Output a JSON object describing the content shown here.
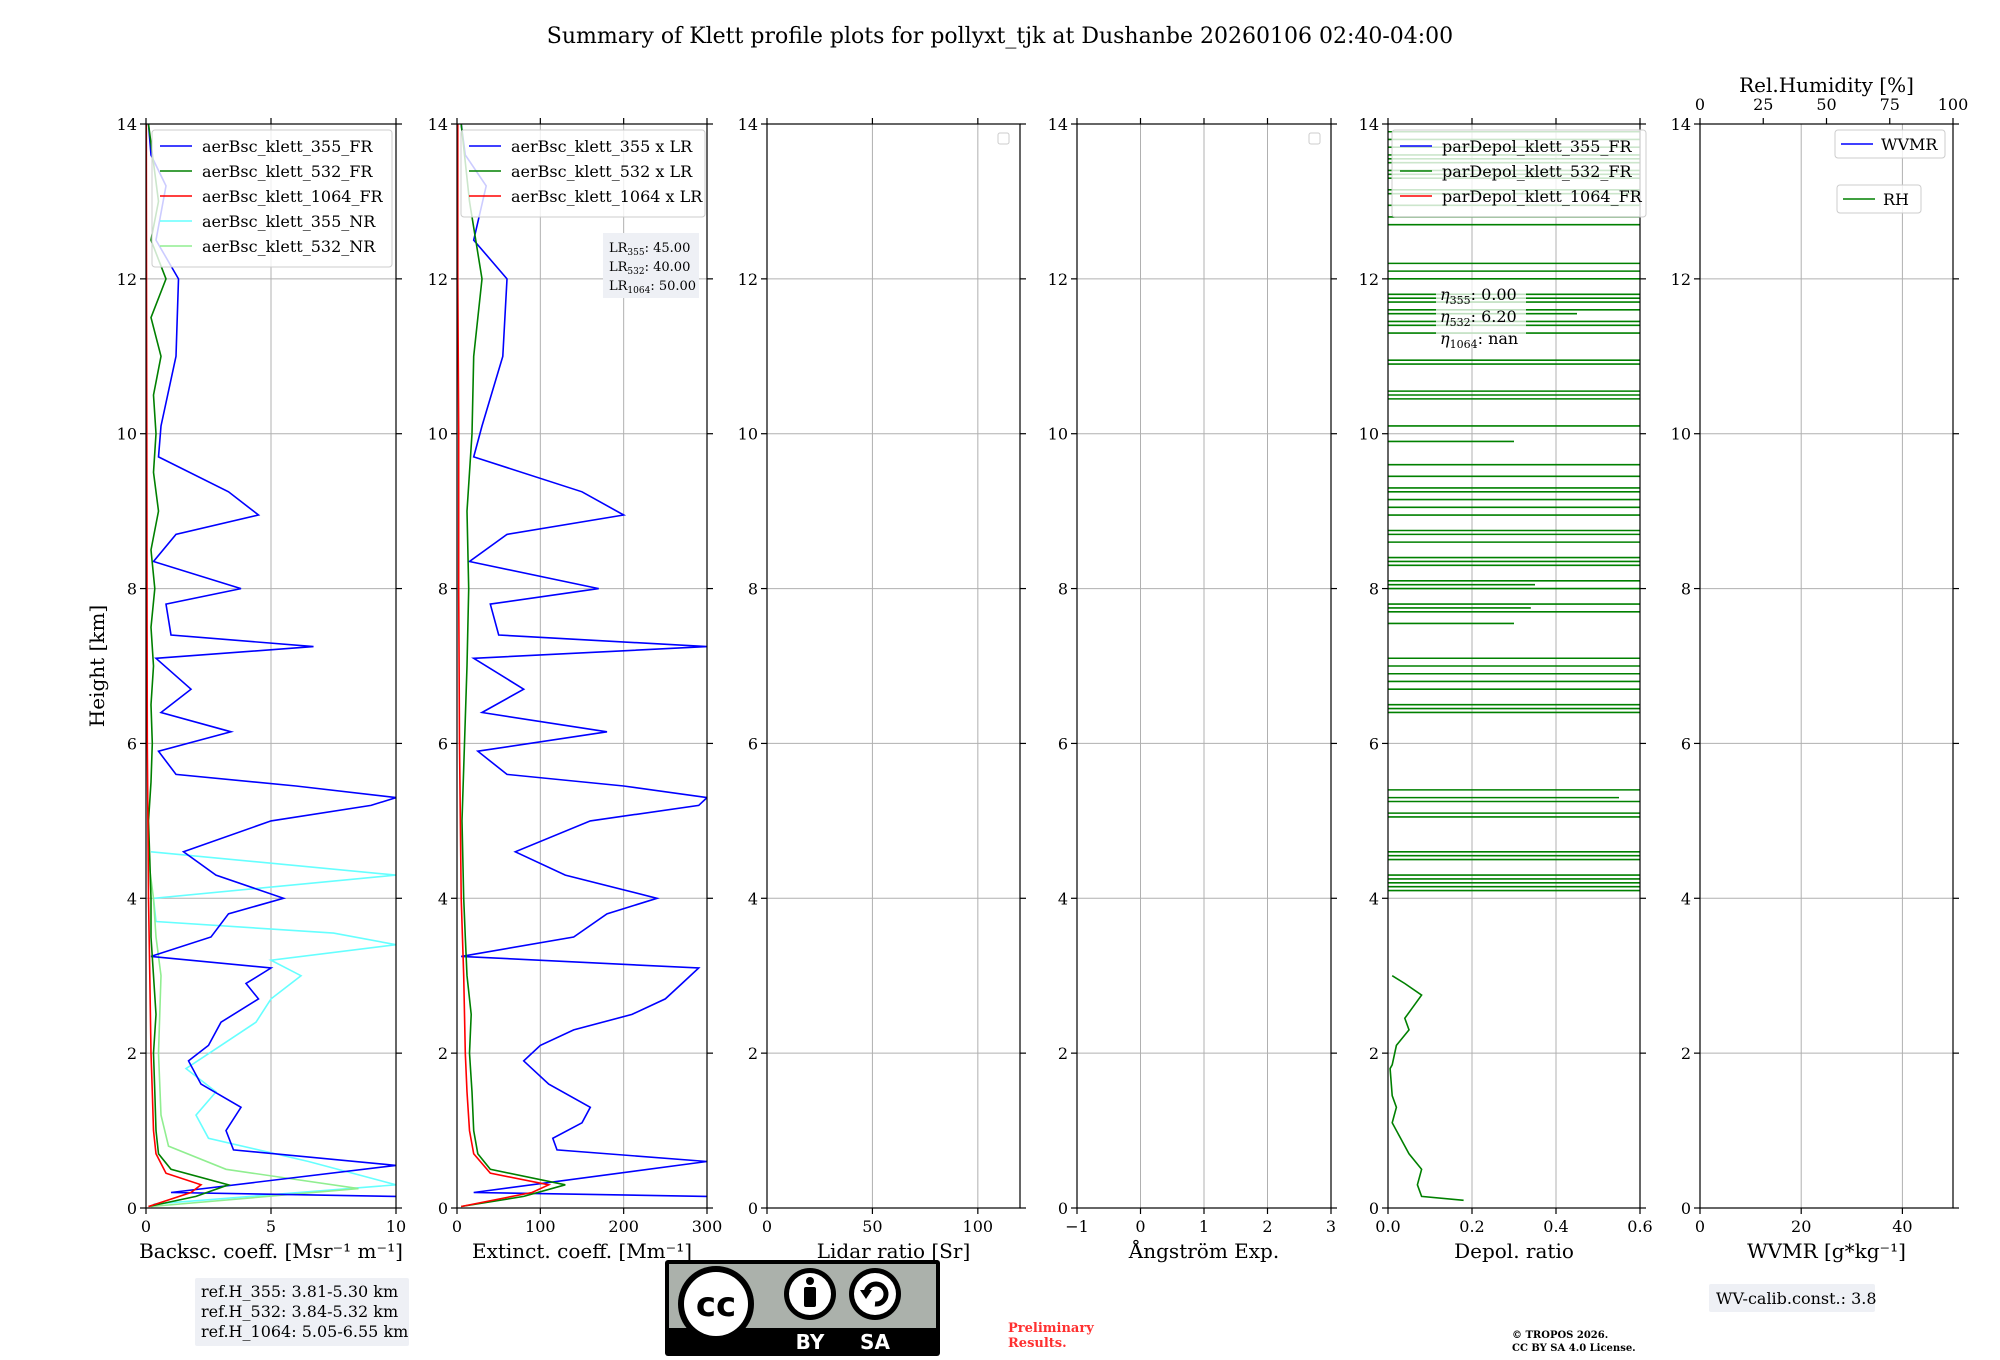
{
  "title": "Summary of Klett profile plots for pollyxt_tjk at Dushanbe 20260106 02:40-04:00",
  "colors": {
    "c355": "#0000ff",
    "c532": "#008000",
    "c1064": "#ff0000",
    "c355nr": "#66ffff",
    "c532nr": "#90ee90"
  },
  "chart_data": [
    {
      "type": "line",
      "id": "bsc",
      "xlabel": "Backsc. coeff. [Msr⁻¹ m⁻¹]",
      "ylabel": "Height [km]",
      "xlim": [
        0,
        10
      ],
      "xticks": [
        "0",
        "5",
        "10"
      ],
      "ylim": [
        0,
        14
      ],
      "yticks": [
        "0",
        "2",
        "4",
        "6",
        "8",
        "10",
        "12",
        "14"
      ],
      "legend": [
        "aerBsc_klett_355_FR",
        "aerBsc_klett_532_FR",
        "aerBsc_klett_1064_FR",
        "aerBsc_klett_355_NR",
        "aerBsc_klett_532_NR"
      ],
      "legend_colors": [
        "c355",
        "c532",
        "c1064",
        "c355nr",
        "c532nr"
      ],
      "series": [
        {
          "name": "aerBsc_klett_355_NR",
          "color": "c355nr",
          "h": [
            0.05,
            0.3,
            0.6,
            0.9,
            1.2,
            1.5,
            1.8,
            2.1,
            2.4,
            2.7,
            3.0,
            3.2,
            3.4,
            3.55,
            3.7,
            4.0,
            4.3,
            4.6
          ],
          "v": [
            0.3,
            10,
            6.5,
            2.5,
            2.0,
            2.8,
            1.6,
            3.0,
            4.4,
            5.0,
            6.2,
            5.0,
            10,
            7.5,
            0.4,
            0.3,
            10,
            0.2
          ]
        },
        {
          "name": "aerBsc_klett_532_NR",
          "color": "c532nr",
          "h": [
            0.02,
            0.25,
            0.5,
            0.8,
            1.2,
            2.0,
            3.0,
            3.5,
            4.0,
            4.5
          ],
          "v": [
            0.2,
            8.5,
            3.2,
            0.9,
            0.6,
            0.5,
            0.6,
            0.4,
            0.3,
            0.1
          ]
        },
        {
          "name": "aerBsc_klett_355_FR",
          "color": "c355",
          "h": [
            0.15,
            0.2,
            0.55,
            0.75,
            1.0,
            1.3,
            1.6,
            1.9,
            2.1,
            2.4,
            2.7,
            2.9,
            3.1,
            3.25,
            3.5,
            3.8,
            4.0,
            4.3,
            4.6,
            5.0,
            5.2,
            5.3,
            5.45,
            5.6,
            5.9,
            6.15,
            6.4,
            6.7,
            7.1,
            7.25,
            7.4,
            7.8,
            8.0,
            8.35,
            8.7,
            8.95,
            9.25,
            9.7,
            10.1,
            11.0,
            12.0,
            12.5,
            13.2,
            13.6,
            14.0
          ],
          "v": [
            10,
            1.0,
            10,
            3.5,
            3.2,
            3.8,
            2.2,
            1.7,
            2.5,
            3.0,
            4.5,
            4.0,
            5.0,
            0.2,
            2.6,
            3.3,
            5.5,
            2.8,
            1.5,
            5.0,
            9.0,
            10,
            6.0,
            1.2,
            0.5,
            3.4,
            0.6,
            1.8,
            0.4,
            6.7,
            1.0,
            0.8,
            3.8,
            0.3,
            1.2,
            4.5,
            3.3,
            0.5,
            0.6,
            1.2,
            1.3,
            0.4,
            0.8,
            0.2,
            0.1
          ]
        },
        {
          "name": "aerBsc_klett_532_FR",
          "color": "c532",
          "h": [
            0.02,
            0.15,
            0.3,
            0.5,
            0.7,
            1.0,
            1.5,
            2.0,
            2.5,
            3.0,
            3.5,
            4.0,
            4.5,
            5.0,
            5.5,
            6.0,
            6.5,
            7.0,
            7.5,
            8.0,
            8.5,
            9.0,
            9.5,
            10.0,
            10.5,
            11.0,
            11.5,
            12.0,
            12.5,
            13.0,
            13.5,
            14.0
          ],
          "v": [
            0.1,
            2.0,
            3.3,
            1.0,
            0.5,
            0.4,
            0.35,
            0.3,
            0.4,
            0.3,
            0.2,
            0.2,
            0.15,
            0.1,
            0.2,
            0.25,
            0.2,
            0.3,
            0.2,
            0.35,
            0.2,
            0.5,
            0.3,
            0.4,
            0.3,
            0.6,
            0.2,
            0.8,
            0.2,
            0.5,
            0.3,
            0.1
          ]
        },
        {
          "name": "aerBsc_klett_1064_FR",
          "color": "c1064",
          "h": [
            0.02,
            0.2,
            0.3,
            0.45,
            0.7,
            1.0,
            1.5,
            2.0,
            3.0,
            4.0,
            6.0,
            8.0,
            10.0,
            12.0,
            14.0
          ],
          "v": [
            0.1,
            1.8,
            2.2,
            0.8,
            0.4,
            0.3,
            0.25,
            0.2,
            0.15,
            0.1,
            0.05,
            0.04,
            0.03,
            0.02,
            0.01
          ]
        }
      ]
    },
    {
      "type": "line",
      "id": "ext",
      "xlabel": "Extinct. coeff. [Mm⁻¹]",
      "xlim": [
        0,
        300
      ],
      "xticks": [
        "0",
        "100",
        "200",
        "300"
      ],
      "ylim": [
        0,
        14
      ],
      "yticks": [
        "0",
        "2",
        "4",
        "6",
        "8",
        "10",
        "12",
        "14"
      ],
      "legend": [
        "aerBsc_klett_355 x LR",
        "aerBsc_klett_532 x LR",
        "aerBsc_klett_1064 x LR"
      ],
      "legend_colors": [
        "c355",
        "c532",
        "c1064"
      ],
      "lr_lines": [
        "45.00",
        "40.00",
        "50.00"
      ],
      "series": [
        {
          "name": "aerBsc_klett_355 x LR",
          "color": "c355",
          "h": [
            0.15,
            0.2,
            0.6,
            0.75,
            0.9,
            1.1,
            1.3,
            1.6,
            1.9,
            2.1,
            2.3,
            2.5,
            2.7,
            2.9,
            3.1,
            3.25,
            3.5,
            3.8,
            4.0,
            4.3,
            4.6,
            5.0,
            5.2,
            5.3,
            5.45,
            5.6,
            5.9,
            6.15,
            6.4,
            6.7,
            7.1,
            7.25,
            7.4,
            7.8,
            8.0,
            8.35,
            8.7,
            8.95,
            9.25,
            9.7,
            10.1,
            11.0,
            12.0,
            12.5,
            13.2,
            13.6,
            14.0
          ],
          "v": [
            300,
            20,
            300,
            120,
            115,
            150,
            160,
            110,
            80,
            100,
            140,
            210,
            250,
            270,
            290,
            5,
            140,
            180,
            240,
            130,
            70,
            160,
            290,
            300,
            200,
            60,
            25,
            180,
            30,
            80,
            20,
            300,
            50,
            40,
            170,
            15,
            60,
            200,
            150,
            20,
            30,
            55,
            60,
            20,
            35,
            10,
            5
          ]
        },
        {
          "name": "aerBsc_klett_532 x LR",
          "color": "c532",
          "h": [
            0.02,
            0.15,
            0.3,
            0.5,
            0.7,
            1.0,
            1.5,
            2.0,
            2.5,
            3.0,
            3.5,
            4.0,
            5.0,
            6.0,
            7.0,
            8.0,
            9.0,
            10.0,
            11.0,
            12.0,
            13.0,
            14.0
          ],
          "v": [
            5,
            80,
            130,
            40,
            25,
            20,
            18,
            15,
            17,
            12,
            10,
            8,
            6,
            9,
            12,
            14,
            12,
            18,
            20,
            30,
            15,
            5
          ]
        },
        {
          "name": "aerBsc_klett_1064 x LR",
          "color": "c1064",
          "h": [
            0.02,
            0.2,
            0.3,
            0.45,
            0.7,
            1.0,
            1.5,
            2.0,
            3.0,
            4.0,
            6.0,
            8.0,
            10.0,
            12.0,
            14.0
          ],
          "v": [
            5,
            90,
            110,
            40,
            20,
            15,
            12,
            10,
            8,
            5,
            3,
            2,
            2,
            1,
            1
          ]
        }
      ]
    },
    {
      "type": "line",
      "id": "lr",
      "xlabel": "Lidar ratio [Sr]",
      "xlim": [
        0,
        120
      ],
      "xticks": [
        "0",
        "50",
        "100"
      ],
      "xtick_vals": [
        0,
        50,
        100
      ],
      "ylim": [
        0,
        14
      ],
      "yticks": [
        "0",
        "2",
        "4",
        "6",
        "8",
        "10",
        "12",
        "14"
      ],
      "series": []
    },
    {
      "type": "line",
      "id": "ae",
      "xlabel": "Ångström Exp.",
      "xlim": [
        -1,
        3
      ],
      "xticks": [
        "−1",
        "0",
        "1",
        "2",
        "3"
      ],
      "ylim": [
        0,
        14
      ],
      "yticks": [
        "0",
        "2",
        "4",
        "6",
        "8",
        "10",
        "12",
        "14"
      ],
      "series": []
    },
    {
      "type": "line",
      "id": "depol",
      "xlabel": "Depol. ratio",
      "xlim": [
        0,
        0.6
      ],
      "xticks": [
        "0.0",
        "0.2",
        "0.4",
        "0.6"
      ],
      "ylim": [
        0,
        14
      ],
      "yticks": [
        "0",
        "2",
        "4",
        "6",
        "8",
        "10",
        "12",
        "14"
      ],
      "legend": [
        "parDepol_klett_355_FR",
        "parDepol_klett_532_FR",
        "parDepol_klett_1064_FR"
      ],
      "legend_colors": [
        "c355",
        "c532",
        "c1064"
      ],
      "eta": [
        ": 0.00",
        ": 6.20",
        ": nan"
      ],
      "series": [
        {
          "name": "parDepol_klett_532_FR",
          "color": "c532",
          "h": [
            0.1,
            0.15,
            0.3,
            0.5,
            0.7,
            0.9,
            1.1,
            1.3,
            1.45,
            1.8,
            1.85,
            2.1,
            2.3,
            2.45,
            2.6,
            2.75,
            2.9,
            3.0
          ],
          "v": [
            0.18,
            0.08,
            0.07,
            0.08,
            0.05,
            0.03,
            0.01,
            0.02,
            0.01,
            0.005,
            0.01,
            0.02,
            0.05,
            0.04,
            0.06,
            0.08,
            0.04,
            0.01
          ]
        }
      ],
      "hlines": [
        4.1,
        4.15,
        4.2,
        4.25,
        4.3,
        4.5,
        4.55,
        4.6,
        5.05,
        5.1,
        5.25,
        5.3,
        5.4,
        6.4,
        6.45,
        6.5,
        6.7,
        6.8,
        6.9,
        7.0,
        7.1,
        7.55,
        7.7,
        7.75,
        7.8,
        8.0,
        8.05,
        8.1,
        8.3,
        8.35,
        8.4,
        8.6,
        8.7,
        8.75,
        8.95,
        9.05,
        9.15,
        9.25,
        9.3,
        9.45,
        9.6,
        9.9,
        10.1,
        10.45,
        10.5,
        10.55,
        10.9,
        10.95,
        11.3,
        11.4,
        11.45,
        11.55,
        11.6,
        11.7,
        11.75,
        11.8,
        12.0,
        12.1,
        12.2,
        12.7,
        12.8,
        12.95,
        13.1,
        13.15,
        13.3,
        13.35,
        13.4,
        13.5,
        13.55,
        13.6,
        13.7,
        13.8,
        13.9
      ],
      "hline_len": [
        0.6,
        0.6,
        0.6,
        0.6,
        0.6,
        0.6,
        0.6,
        0.6,
        0.6,
        0.6,
        0.6,
        0.55,
        0.6,
        0.6,
        0.6,
        0.6,
        0.6,
        0.6,
        0.6,
        0.6,
        0.6,
        0.3,
        0.6,
        0.34,
        0.6,
        0.6,
        0.35,
        0.6,
        0.6,
        0.6,
        0.6,
        0.6,
        0.6,
        0.6,
        0.6,
        0.6,
        0.6,
        0.6,
        0.6,
        0.6,
        0.6,
        0.3,
        0.6,
        0.6,
        0.6,
        0.6,
        0.6,
        0.6,
        0.6,
        0.6,
        0.6,
        0.45,
        0.6,
        0.6,
        0.6,
        0.6,
        0.6,
        0.6,
        0.6,
        0.6,
        0.6,
        0.6,
        0.6,
        0.6,
        0.6,
        0.6,
        0.6,
        0.6,
        0.6,
        0.6,
        0.6,
        0.6,
        0.6
      ]
    },
    {
      "type": "line",
      "id": "wv",
      "xlabel": "WVMR [g*kg⁻¹]",
      "xlim": [
        0,
        50
      ],
      "xticks": [
        "0",
        "20",
        "40"
      ],
      "xtick_vals": [
        0,
        20,
        40
      ],
      "top_xlabel": "Rel.Humidity [%]",
      "top_xticks": [
        "0",
        "25",
        "50",
        "75",
        "100"
      ],
      "ylim": [
        0,
        14
      ],
      "yticks": [
        "0",
        "2",
        "4",
        "6",
        "8",
        "10",
        "12",
        "14"
      ],
      "legend": [
        "WVMR",
        "RH"
      ],
      "legend_colors": [
        "c355",
        "c532"
      ],
      "series": []
    }
  ],
  "ref_heights": [
    "ref.H_355: 3.81-5.30 km",
    "ref.H_532: 3.84-5.32 km",
    "ref.H_1064: 5.05-6.55 km"
  ],
  "license": {
    "cc": "cc",
    "by": "BY",
    "sa": "SA"
  },
  "preliminary": [
    "Preliminary",
    "Results."
  ],
  "copyright": [
    "© TROPOS 2026.",
    "CC BY SA 4.0 License."
  ],
  "wv_calib": "WV-calib.const.: 3.8"
}
